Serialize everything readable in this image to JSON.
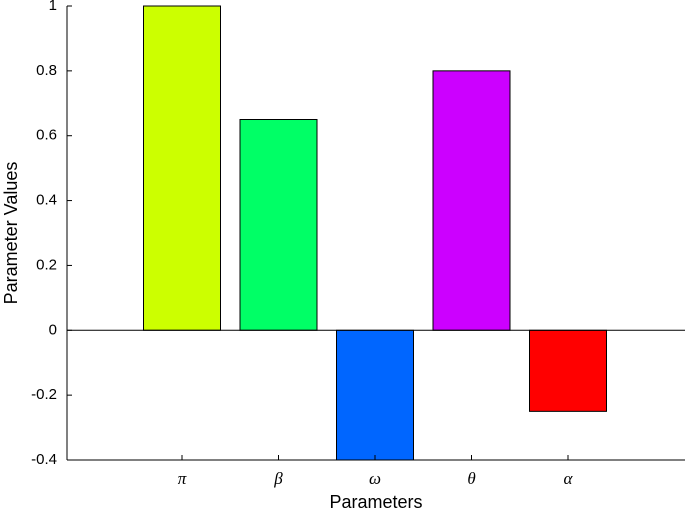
{
  "chart_data": {
    "type": "bar",
    "categories": [
      "π",
      "β",
      "ω",
      "θ",
      "α"
    ],
    "values": [
      1,
      0.65,
      -0.4,
      0.8,
      -0.25
    ],
    "colors": [
      "#ccff00",
      "#00ff66",
      "#0066ff",
      "#cc00ff",
      "#ff0000"
    ],
    "ylim": [
      -0.4,
      1
    ],
    "yticks": [
      -0.4,
      -0.2,
      0,
      0.2,
      0.4,
      0.6,
      0.8,
      1
    ],
    "xlabel": "Parameters",
    "ylabel": "Parameter Values"
  }
}
